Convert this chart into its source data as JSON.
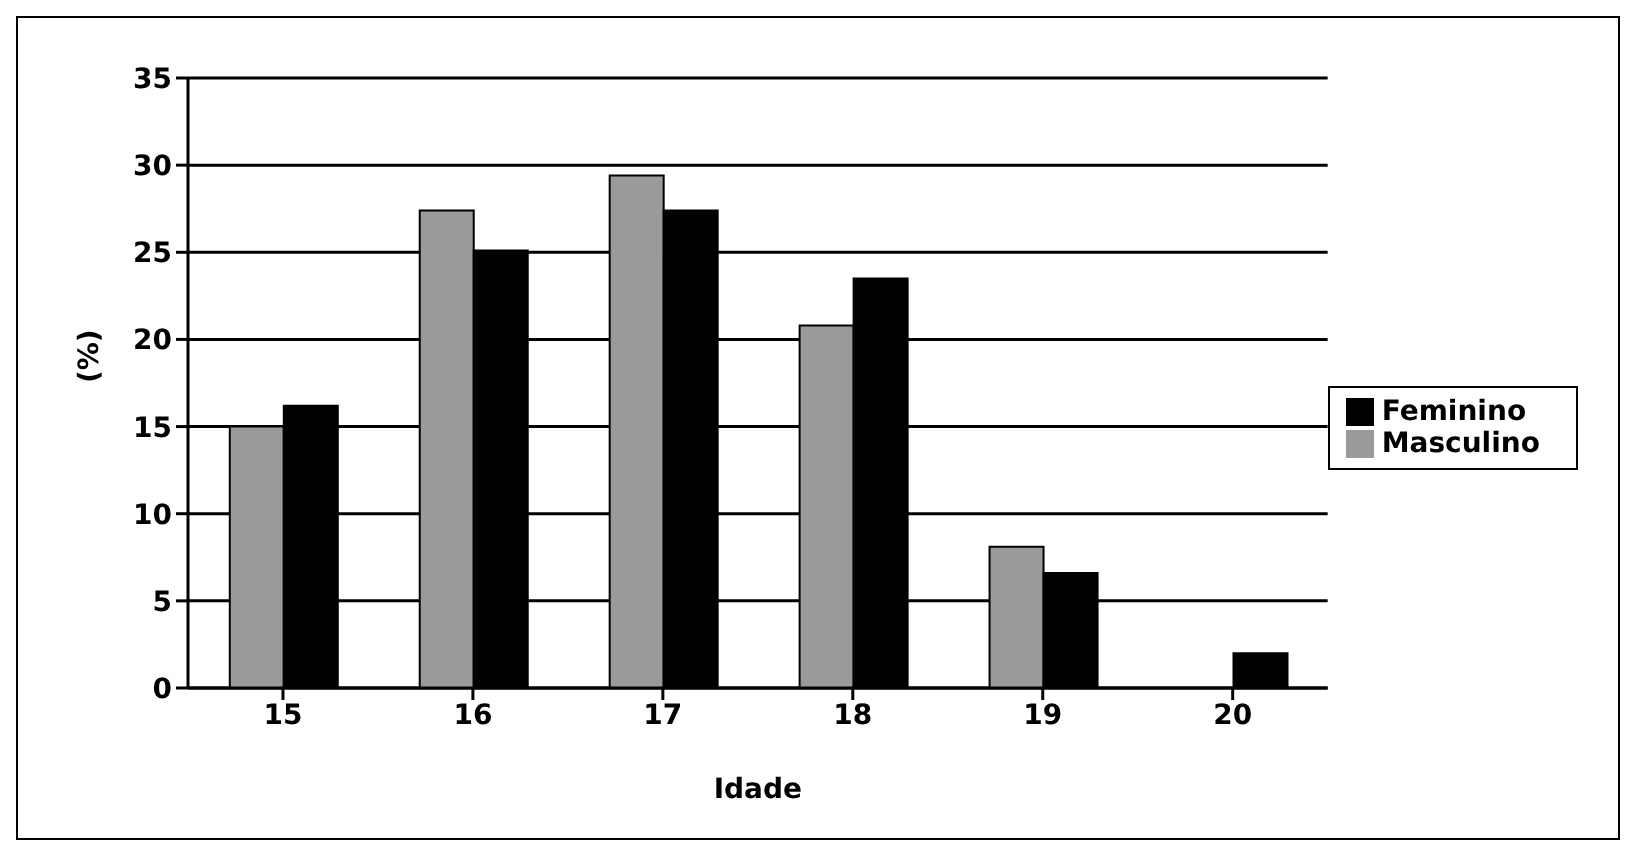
{
  "chart_data": {
    "type": "bar",
    "xlabel": "Idade",
    "ylabel": "(%)",
    "categories": [
      "15",
      "16",
      "17",
      "18",
      "19",
      "20"
    ],
    "series": [
      {
        "name": "Masculino",
        "color": "#9a9a9a",
        "values": [
          15.0,
          27.4,
          29.4,
          20.8,
          8.1,
          0
        ]
      },
      {
        "name": "Feminino",
        "color": "#000000",
        "values": [
          16.2,
          25.1,
          27.4,
          23.5,
          6.6,
          2.0
        ]
      }
    ],
    "ylim": [
      0,
      35
    ],
    "yticks": [
      0,
      5,
      10,
      15,
      20,
      25,
      30,
      35
    ],
    "grid": "y",
    "legend": "right"
  }
}
